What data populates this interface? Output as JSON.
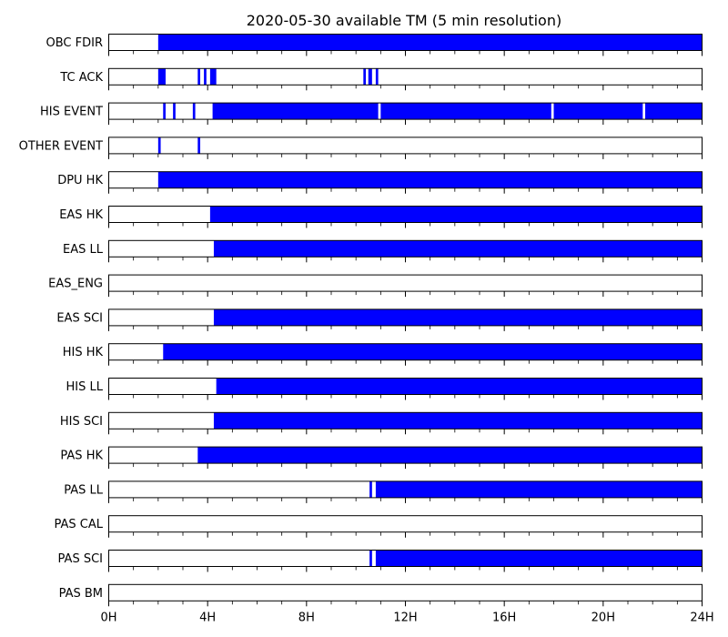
{
  "chart_data": {
    "type": "timeline",
    "title": "2020-05-30 available TM (5 min resolution)",
    "x_unit": "hours",
    "xlim": [
      0,
      24
    ],
    "x_ticks": [
      0,
      4,
      8,
      12,
      16,
      20,
      24
    ],
    "x_tick_labels": [
      "0H",
      "4H",
      "8H",
      "12H",
      "16H",
      "20H",
      "24H"
    ],
    "available_color": "#0000ff",
    "rows": [
      {
        "label": "OBC FDIR",
        "intervals": [
          [
            2.0,
            24.0
          ]
        ]
      },
      {
        "label": "TC ACK",
        "intervals": [
          [
            2.0,
            2.3
          ],
          [
            3.6,
            3.7
          ],
          [
            3.85,
            3.95
          ],
          [
            4.1,
            4.35
          ],
          [
            10.3,
            10.4
          ],
          [
            10.5,
            10.65
          ],
          [
            10.8,
            10.9
          ]
        ]
      },
      {
        "label": "HIS EVENT",
        "intervals": [
          [
            2.2,
            2.3
          ],
          [
            2.6,
            2.7
          ],
          [
            3.4,
            3.5
          ],
          [
            4.2,
            10.9
          ],
          [
            11.0,
            17.9
          ],
          [
            18.0,
            21.6
          ],
          [
            21.7,
            24.0
          ]
        ]
      },
      {
        "label": "OTHER EVENT",
        "intervals": [
          [
            2.0,
            2.1
          ],
          [
            3.6,
            3.7
          ]
        ]
      },
      {
        "label": "DPU HK",
        "intervals": [
          [
            2.0,
            24.0
          ]
        ]
      },
      {
        "label": "EAS HK",
        "intervals": [
          [
            4.1,
            24.0
          ]
        ]
      },
      {
        "label": "EAS LL",
        "intervals": [
          [
            4.25,
            24.0
          ]
        ]
      },
      {
        "label": "EAS_ENG",
        "intervals": []
      },
      {
        "label": "EAS SCI",
        "intervals": [
          [
            4.25,
            24.0
          ]
        ]
      },
      {
        "label": "HIS HK",
        "intervals": [
          [
            2.2,
            24.0
          ]
        ]
      },
      {
        "label": "HIS LL",
        "intervals": [
          [
            4.35,
            24.0
          ]
        ]
      },
      {
        "label": "HIS SCI",
        "intervals": [
          [
            4.25,
            24.0
          ]
        ]
      },
      {
        "label": "PAS HK",
        "intervals": [
          [
            3.6,
            24.0
          ]
        ]
      },
      {
        "label": "PAS LL",
        "intervals": [
          [
            10.55,
            10.65
          ],
          [
            10.8,
            24.0
          ]
        ]
      },
      {
        "label": "PAS CAL",
        "intervals": []
      },
      {
        "label": "PAS SCI",
        "intervals": [
          [
            10.55,
            10.65
          ],
          [
            10.8,
            24.0
          ]
        ]
      },
      {
        "label": "PAS BM",
        "intervals": []
      }
    ]
  }
}
